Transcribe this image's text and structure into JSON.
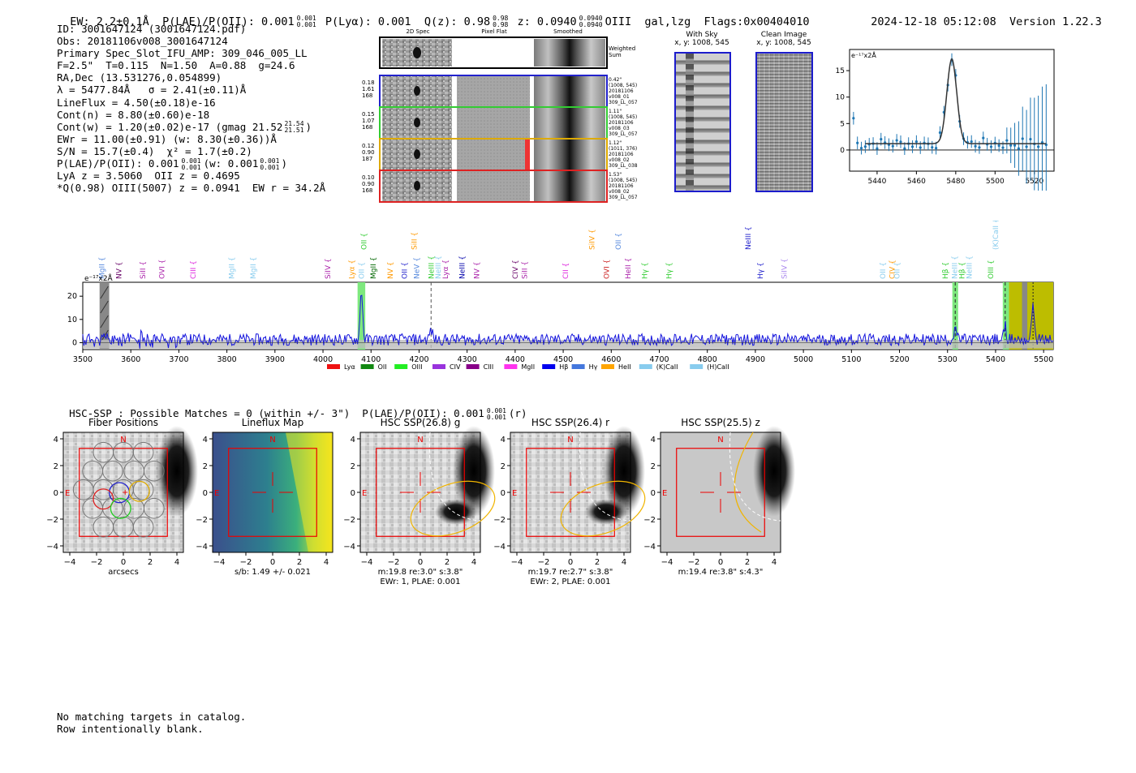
{
  "header": {
    "ew": "EW: 2.2±0.1Å",
    "plae": "P(LAE)/P(OII): 0.001",
    "plae_sup": "0.001",
    "plae_sub": "0.001",
    "plya": "P(Lyα): 0.001",
    "qz": "Q(z): 0.98",
    "qz_sup": "0.98",
    "qz_sub": "0.98",
    "z": "z: 0.0940",
    "z_sup": "0.0940",
    "z_sub": "0.0940",
    "line": "OIII",
    "flags_group": "gal,lzg",
    "flags": "Flags:0x00404010",
    "datetime": "2024-12-18 05:12:08",
    "version": "Version 1.22.3"
  },
  "info": {
    "id": "ID: 3001647124 (3001647124.pdf)",
    "obs": "Obs: 20181106v008_3001647124",
    "primary": "Primary Spec_Slot_IFU_AMP: 309_046_005_LL",
    "fwhm": "F=2.5\"  T=0.115  N=1.50  A=0.88  g=24.6",
    "radec": "RA,Dec (13.531276,0.054899)",
    "lambda": "λ = 5477.84Å   σ = 2.41(±0.11)Å",
    "lineflux": "LineFlux = 4.50(±0.18)e-16",
    "contn": "Cont(n) = 8.80(±0.60)e-18",
    "contw": "Cont(w) = 1.20(±0.02)e-17 (gmag 21.52",
    "contw_sup": "21.54",
    "contw_sub": "21.51",
    "contw_end": ")",
    "ewr": "EWr = 11.00(±0.91) (w: 8.30(±0.36))Å",
    "sn": "S/N = 15.7(±0.4)  χ² = 1.7(±0.2)",
    "plae": "P(LAE)/P(OII): 0.001",
    "plae_sup": "0.001",
    "plae_sub": "0.001",
    "plae_w": "(w: 0.001",
    "plae_w_sup": "0.001",
    "plae_w_sub": "0.001",
    "plae_w_end": ")",
    "lya": "LyA z = 3.5060  OII z = 0.4695",
    "q": "*Q(0.98) OIII(5007) z = 0.0941  EW r = 34.2Å"
  },
  "cutouts": {
    "col_titles": [
      "2D Spec",
      "Pixel Flat",
      "Smoothed"
    ],
    "weighted_label": "Weighted Sum",
    "rows": [
      {
        "left": [
          "0.18",
          "1.61",
          "168"
        ],
        "right": [
          "0.42\"",
          "(1008, 545)",
          "20181106",
          "v008_01",
          "309_LL_057"
        ],
        "color": "#2222cc"
      },
      {
        "left": [
          "0.15",
          "1.07",
          "168"
        ],
        "right": [
          "1.11\"",
          "(1008, 545)",
          "20181106",
          "v008_03",
          "309_LL_057"
        ],
        "color": "#33cc33"
      },
      {
        "left": [
          "0.12",
          "0.90",
          "187"
        ],
        "right": [
          "1.12\"",
          "(1011, 376)",
          "20181106",
          "v008_02",
          "309_LL_038"
        ],
        "color": "#ddaa00"
      },
      {
        "left": [
          "0.10",
          "0.90",
          "168"
        ],
        "right": [
          "1.53\"",
          "(1008, 545)",
          "20181106",
          "v008_02",
          "309_LL_057"
        ],
        "color": "#dd2222"
      }
    ],
    "with_sky": "With Sky",
    "with_sky_xy": "x, y: 1008, 545",
    "clean": "Clean Image",
    "clean_xy": "x, y: 1008, 545"
  },
  "zoom_chart": {
    "ylabel": "e⁻¹⁷x2Å",
    "xticks": [
      "5440",
      "5460",
      "5480",
      "5500",
      "5520"
    ],
    "yticks": [
      "0",
      "5",
      "10",
      "15"
    ]
  },
  "spectrum": {
    "ylabel": "e⁻¹⁷x2Å",
    "xticks": [
      "3500",
      "3600",
      "3700",
      "3800",
      "3900",
      "4000",
      "4100",
      "4200",
      "4300",
      "4400",
      "4500",
      "4600",
      "4700",
      "4800",
      "4900",
      "5000",
      "5100",
      "5200",
      "5300",
      "5400",
      "5500"
    ],
    "yticks": [
      "0",
      "10",
      "20"
    ],
    "line_labels": [
      {
        "t": "MgII",
        "c": "#5588dd",
        "w": 3540,
        "row": 1
      },
      {
        "t": "NV",
        "c": "#660066",
        "w": 3575,
        "row": 1
      },
      {
        "t": "SiII",
        "c": "#aa22aa",
        "w": 3625,
        "row": 1
      },
      {
        "t": "OVI",
        "c": "#aa22aa",
        "w": 3665,
        "row": 1
      },
      {
        "t": "CIII",
        "c": "#dd22dd",
        "w": 3730,
        "row": 1
      },
      {
        "t": "MgII",
        "c": "#88ccee",
        "w": 3810,
        "row": 1
      },
      {
        "t": "MgII",
        "c": "#88ccee",
        "w": 3855,
        "row": 1
      },
      {
        "t": "SiIV",
        "c": "#aa22aa",
        "w": 4010,
        "row": 1
      },
      {
        "t": "Lyα",
        "c": "#ff9900",
        "w": 4060,
        "row": 1
      },
      {
        "t": "OII",
        "c": "#88ccee",
        "w": 4080,
        "row": 1
      },
      {
        "t": "OII",
        "c": "#33cc33",
        "w": 4085,
        "row": 0
      },
      {
        "t": "MgII",
        "c": "#006600",
        "w": 4105,
        "row": 1
      },
      {
        "t": "NV",
        "c": "#ff9900",
        "w": 4140,
        "row": 1
      },
      {
        "t": "OII",
        "c": "#2222cc",
        "w": 4170,
        "row": 1
      },
      {
        "t": "NeV",
        "c": "#5588dd",
        "w": 4195,
        "row": 1
      },
      {
        "t": "SiII",
        "c": "#ff9900",
        "w": 4190,
        "row": 0
      },
      {
        "t": "NeIII",
        "c": "#33cc33",
        "w": 4225,
        "row": 1
      },
      {
        "t": "NeIII",
        "c": "#88ccee",
        "w": 4240,
        "row": 1
      },
      {
        "t": "Lyα",
        "c": "#aa22aa",
        "w": 4255,
        "row": 1
      },
      {
        "t": "NeIII",
        "c": "#0000aa",
        "w": 4290,
        "row": 1
      },
      {
        "t": "NV",
        "c": "#aa22aa",
        "w": 4320,
        "row": 1
      },
      {
        "t": "CIV",
        "c": "#660066",
        "w": 4400,
        "row": 1
      },
      {
        "t": "SiII",
        "c": "#aa22aa",
        "w": 4420,
        "row": 1
      },
      {
        "t": "CII",
        "c": "#dd22dd",
        "w": 4505,
        "row": 1
      },
      {
        "t": "OVI",
        "c": "#cc2222",
        "w": 4590,
        "row": 1
      },
      {
        "t": "HeII",
        "c": "#aa22aa",
        "w": 4635,
        "row": 1
      },
      {
        "t": "Hγ",
        "c": "#33cc33",
        "w": 4670,
        "row": 1
      },
      {
        "t": "SiIV",
        "c": "#ff9900",
        "w": 4560,
        "row": 0
      },
      {
        "t": "OII",
        "c": "#5588dd",
        "w": 4615,
        "row": 0
      },
      {
        "t": "Hγ",
        "c": "#33cc33",
        "w": 4720,
        "row": 1
      },
      {
        "t": "NeIII",
        "c": "#2222cc",
        "w": 4885,
        "row": 0
      },
      {
        "t": "Hγ",
        "c": "#2222cc",
        "w": 4910,
        "row": 1
      },
      {
        "t": "SiIV",
        "c": "#aa88ee",
        "w": 4960,
        "row": 1
      },
      {
        "t": "OII",
        "c": "#88ccee",
        "w": 5165,
        "row": 1
      },
      {
        "t": "CIV",
        "c": "#ff9900",
        "w": 5185,
        "row": 1
      },
      {
        "t": "OII",
        "c": "#88ccee",
        "w": 5195,
        "row": 1
      },
      {
        "t": "Hβ",
        "c": "#33cc33",
        "w": 5295,
        "row": 1
      },
      {
        "t": "NeIII",
        "c": "#88ccee",
        "w": 5315,
        "row": 1
      },
      {
        "t": "Hβ",
        "c": "#33cc33",
        "w": 5330,
        "row": 1
      },
      {
        "t": "NeIII",
        "c": "#88ccee",
        "w": 5345,
        "row": 1
      },
      {
        "t": "OIII",
        "c": "#33cc33",
        "w": 5390,
        "row": 1
      },
      {
        "t": "(K)CaII",
        "c": "#88ccee",
        "w": 5400,
        "row": 0
      }
    ],
    "legend": [
      {
        "t": "Lyα",
        "c": "#ee1111"
      },
      {
        "t": "OII",
        "c": "#118811"
      },
      {
        "t": "OIII",
        "c": "#22ee22"
      },
      {
        "t": "CIV",
        "c": "#9933dd"
      },
      {
        "t": "CIII",
        "c": "#880088"
      },
      {
        "t": "MgII",
        "c": "#ff33ee"
      },
      {
        "t": "Hβ",
        "c": "#0000ee"
      },
      {
        "t": "Hγ",
        "c": "#4477dd"
      },
      {
        "t": "HeII",
        "c": "#ffa500"
      },
      {
        "t": "(K)CaII",
        "c": "#88ccee"
      },
      {
        "t": "(H)CaII",
        "c": "#88ccee"
      }
    ]
  },
  "hsc": {
    "summary": "HSC-SSP : Possible Matches = 0 (within +/- 3\")  P(LAE)/P(OII): 0.001",
    "summary_sup": "0.001",
    "summary_sub": "0.001",
    "summary_end": "(r)",
    "panels": [
      {
        "title": "Fiber Positions",
        "under1": "arcsecs",
        "under2": ""
      },
      {
        "title": "Lineflux Map",
        "under1": "s/b: 1.49 +/- 0.021",
        "under2": ""
      },
      {
        "title": "HSC SSP(26.8) g",
        "under1": "m:19.8  re:3.0\"  s:3.8\"",
        "under2": "EWr: 1, PLAE: 0.001"
      },
      {
        "title": "HSC SSP(26.4) r",
        "under1": "m:19.7  re:2.7\"  s:3.8\"",
        "under2": "EWr: 2, PLAE: 0.001"
      },
      {
        "title": "HSC SSP(25.5) z",
        "under1": "m:19.4  re:3.8\"  s:4.3\"",
        "under2": ""
      }
    ],
    "xticks": [
      "−4",
      "−2",
      "0",
      "2",
      "4"
    ],
    "yticks": [
      "4",
      "2",
      "0",
      "−2",
      "−4"
    ],
    "n_label": "N",
    "e_label": "E"
  },
  "footer": {
    "line1": "No matching targets in catalog.",
    "line2": "Row intentionally blank."
  }
}
